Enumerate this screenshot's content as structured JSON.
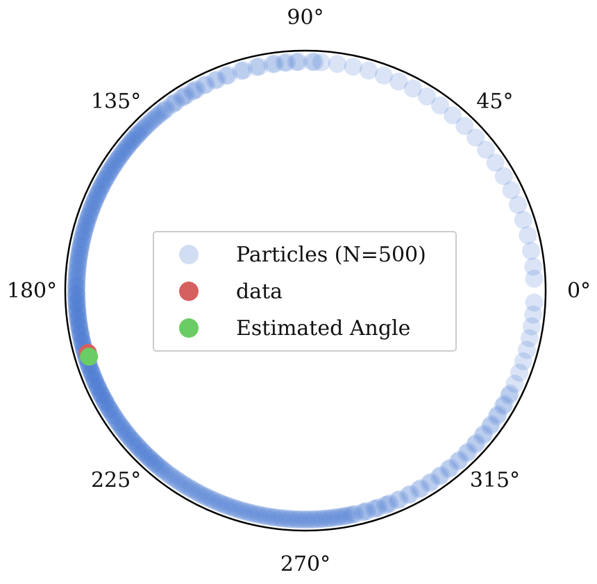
{
  "chart_data": {
    "type": "scatter",
    "projection": "polar",
    "radial_axis": "hidden",
    "angle_unit": "degrees",
    "grid": false,
    "legend_placement": "center",
    "tick_labels": [
      "0°",
      "45°",
      "90°",
      "135°",
      "180°",
      "225°",
      "270°",
      "315°"
    ],
    "tick_angles": [
      0,
      45,
      90,
      135,
      180,
      225,
      270,
      315
    ],
    "series": [
      {
        "name": "Particles (N=500)",
        "color": "#4878d0",
        "opacity": 0.2,
        "angles": [
          3,
          6,
          10,
          14,
          18,
          22,
          26,
          30,
          34,
          38,
          42,
          46,
          50,
          54,
          58,
          62,
          66,
          70,
          74,
          78,
          82,
          86,
          88,
          92,
          95,
          98,
          102,
          106,
          110,
          113,
          116,
          119,
          122,
          125,
          128,
          130,
          132,
          134,
          136,
          138,
          140,
          142,
          144,
          146,
          148,
          150,
          152,
          154,
          156,
          158,
          160,
          162,
          164,
          166,
          168,
          170,
          172,
          174,
          176,
          178,
          180,
          182,
          184,
          186,
          188,
          190,
          192,
          194,
          196,
          198,
          200,
          202,
          204,
          206,
          208,
          210,
          212,
          214,
          216,
          218,
          220,
          222,
          224,
          226,
          228,
          230,
          232,
          234,
          236,
          238,
          240,
          242,
          244,
          246,
          248,
          250,
          252,
          254,
          256,
          258,
          260,
          262,
          264,
          266,
          268,
          270,
          272,
          274,
          276,
          278,
          280,
          282,
          285,
          288,
          291,
          294,
          297,
          300,
          303,
          306,
          309,
          312,
          315,
          318,
          321,
          324,
          327,
          330,
          333,
          336,
          339,
          342,
          345,
          348,
          351,
          354,
          357
        ],
        "weights": [
          1,
          1,
          1,
          1,
          1,
          1,
          1,
          1,
          1,
          1,
          1,
          1,
          1,
          1,
          1,
          1,
          1,
          1,
          1,
          1,
          1,
          1,
          2,
          2,
          2,
          2,
          2,
          2,
          2,
          2,
          2,
          3,
          3,
          3,
          3,
          3,
          3,
          3,
          4,
          4,
          4,
          4,
          4,
          4,
          4,
          4,
          4,
          4,
          4,
          4,
          4,
          4,
          4,
          4,
          4,
          4,
          4,
          4,
          4,
          4,
          5,
          5,
          5,
          5,
          5,
          5,
          5,
          5,
          5,
          5,
          5,
          5,
          5,
          5,
          5,
          5,
          4,
          4,
          4,
          4,
          4,
          4,
          4,
          4,
          4,
          4,
          3,
          3,
          3,
          3,
          3,
          3,
          3,
          3,
          3,
          3,
          3,
          3,
          3,
          3,
          3,
          3,
          3,
          3,
          3,
          3,
          3,
          3,
          3,
          3,
          3,
          3,
          3,
          3,
          3,
          2,
          2,
          2,
          2,
          2,
          2,
          2,
          2,
          2,
          2,
          2,
          2,
          2,
          2,
          1,
          1,
          1,
          1,
          1,
          1,
          1,
          1
        ]
      },
      {
        "name": "data",
        "color": "#d65f5f",
        "opacity": 1,
        "angles": [
          196
        ]
      },
      {
        "name": "Estimated Angle",
        "color": "#6acc64",
        "opacity": 1,
        "angles": [
          197
        ]
      }
    ]
  }
}
